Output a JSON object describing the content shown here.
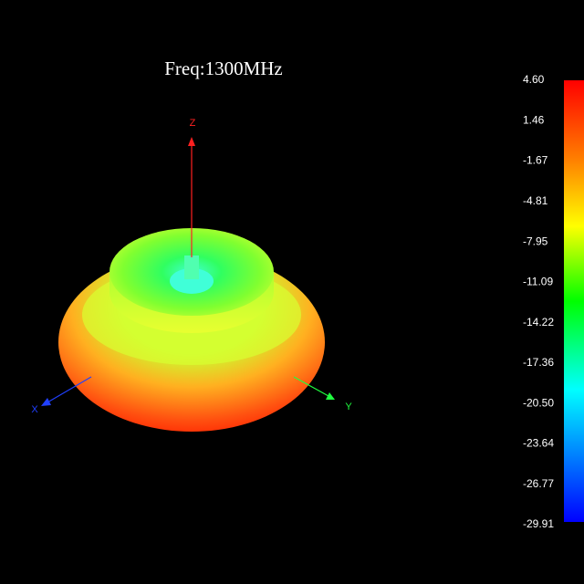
{
  "title": "Freq:1300MHz",
  "axes": {
    "z": "Z",
    "x": "X",
    "y": "Y"
  },
  "colorbar": {
    "ticks": [
      "4.60",
      "1.46",
      "-1.67",
      "-4.81",
      "-7.95",
      "-11.09",
      "-14.22",
      "-17.36",
      "-20.50",
      "-23.64",
      "-26.77",
      "-29.91"
    ]
  }
}
